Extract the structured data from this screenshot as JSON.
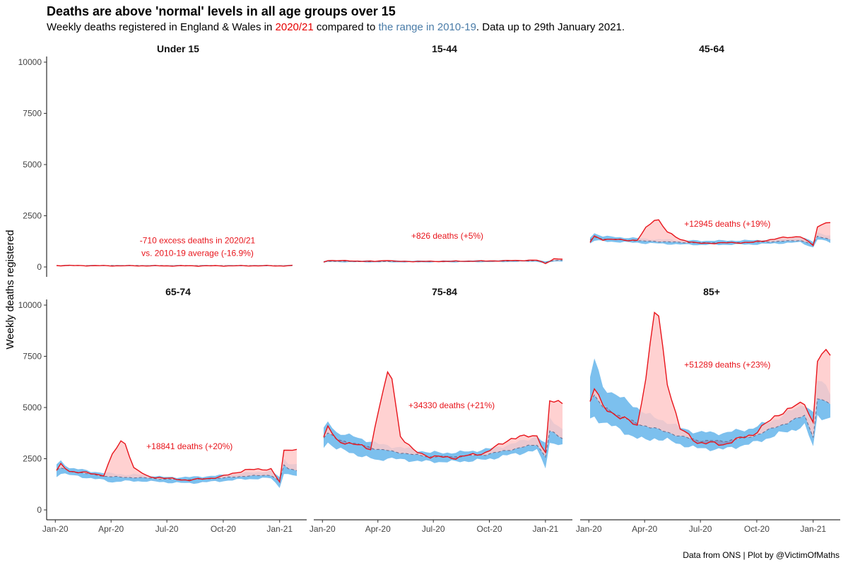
{
  "title": "Deaths are above 'normal' levels in all age groups over 15",
  "subtitle": {
    "part1": "Weekly deaths registered in England & Wales in ",
    "highlight1": "2020/21",
    "part2": " compared to ",
    "highlight2": "the range in 2010-19",
    "part3": ". Data up to 29th January 2021."
  },
  "caption": "Data from ONS | Plot by @VictimOfMaths",
  "colors": {
    "current_line": "#e8141b",
    "excess_fill": "#ffc9c9",
    "range_fill": "#7cc0ee",
    "avg_overlap": "#8a95c5",
    "avg_line": "#6b6b8a"
  },
  "chart_data": {
    "type": "area",
    "ylabel": "Weekly deaths registered",
    "xlabel": "",
    "ylim": [
      0,
      10000
    ],
    "yticks": [
      0,
      2500,
      5000,
      7500,
      10000
    ],
    "xlim": [
      "2020-01-03",
      "2021-01-29"
    ],
    "xticks": [
      {
        "date": "2020-01-01",
        "label": "Jan-20"
      },
      {
        "date": "2020-04-01",
        "label": "Apr-20"
      },
      {
        "date": "2020-07-01",
        "label": "Jul-20"
      },
      {
        "date": "2020-10-01",
        "label": "Oct-20"
      },
      {
        "date": "2021-01-01",
        "label": "Jan-21"
      }
    ],
    "series_labels": [
      "2020/21",
      "the range in 2010-19"
    ],
    "panels": [
      {
        "name": "Under 15",
        "annotation": [
          "-710 excess deaths in 2020/21",
          "vs. 2010-19 average (-16.9%)"
        ],
        "annotation_pos": {
          "date": "2020-08-20",
          "value": 1150
        },
        "keys": [
          {
            "week": 1,
            "current": 70,
            "avg": 70,
            "min": 60,
            "max": 90
          },
          {
            "week": 13,
            "current": 60,
            "avg": 68,
            "min": 55,
            "max": 85
          },
          {
            "week": 26,
            "current": 55,
            "avg": 65,
            "min": 50,
            "max": 80
          },
          {
            "week": 39,
            "current": 55,
            "avg": 65,
            "min": 50,
            "max": 80
          },
          {
            "week": 51,
            "current": 60,
            "avg": 65,
            "min": 50,
            "max": 85
          },
          {
            "week": 52,
            "current": 50,
            "avg": 60,
            "min": 40,
            "max": 80
          },
          {
            "week": 56,
            "current": 65,
            "avg": 70,
            "min": 55,
            "max": 90
          }
        ]
      },
      {
        "name": "15-44",
        "annotation": [
          "+826 deaths (+5%)"
        ],
        "annotation_pos": {
          "date": "2020-07-24",
          "value": 1380
        },
        "keys": [
          {
            "week": 1,
            "current": 240,
            "avg": 240,
            "min": 200,
            "max": 300
          },
          {
            "week": 2,
            "current": 320,
            "avg": 280,
            "min": 240,
            "max": 330
          },
          {
            "week": 13,
            "current": 270,
            "avg": 260,
            "min": 230,
            "max": 300
          },
          {
            "week": 16,
            "current": 330,
            "avg": 270,
            "min": 230,
            "max": 310
          },
          {
            "week": 18,
            "current": 270,
            "avg": 270,
            "min": 230,
            "max": 310
          },
          {
            "week": 26,
            "current": 270,
            "avg": 260,
            "min": 230,
            "max": 300
          },
          {
            "week": 39,
            "current": 290,
            "avg": 280,
            "min": 240,
            "max": 320
          },
          {
            "week": 51,
            "current": 330,
            "avg": 300,
            "min": 260,
            "max": 340
          },
          {
            "week": 53,
            "current": 170,
            "avg": 220,
            "min": 180,
            "max": 280
          },
          {
            "week": 55,
            "current": 400,
            "avg": 320,
            "min": 270,
            "max": 370
          },
          {
            "week": 57,
            "current": 380,
            "avg": 320,
            "min": 270,
            "max": 360
          }
        ]
      },
      {
        "name": "45-64",
        "annotation": [
          "+12945 deaths (+19%)"
        ],
        "annotation_pos": {
          "date": "2020-08-14",
          "value": 1960
        },
        "keys": [
          {
            "week": 1,
            "current": 1200,
            "avg": 1300,
            "min": 1150,
            "max": 1450
          },
          {
            "week": 2,
            "current": 1500,
            "avg": 1450,
            "min": 1300,
            "max": 1650
          },
          {
            "week": 4,
            "current": 1350,
            "avg": 1380,
            "min": 1250,
            "max": 1500
          },
          {
            "week": 12,
            "current": 1300,
            "avg": 1280,
            "min": 1180,
            "max": 1400
          },
          {
            "week": 14,
            "current": 1900,
            "avg": 1260,
            "min": 1150,
            "max": 1380
          },
          {
            "week": 16,
            "current": 2300,
            "avg": 1250,
            "min": 1150,
            "max": 1350
          },
          {
            "week": 17,
            "current": 2300,
            "avg": 1240,
            "min": 1140,
            "max": 1340
          },
          {
            "week": 19,
            "current": 1700,
            "avg": 1230,
            "min": 1120,
            "max": 1340
          },
          {
            "week": 22,
            "current": 1350,
            "avg": 1200,
            "min": 1100,
            "max": 1300
          },
          {
            "week": 26,
            "current": 1150,
            "avg": 1180,
            "min": 1080,
            "max": 1280
          },
          {
            "week": 39,
            "current": 1200,
            "avg": 1200,
            "min": 1100,
            "max": 1300
          },
          {
            "week": 45,
            "current": 1400,
            "avg": 1250,
            "min": 1150,
            "max": 1350
          },
          {
            "week": 50,
            "current": 1500,
            "avg": 1300,
            "min": 1200,
            "max": 1450
          },
          {
            "week": 53,
            "current": 1050,
            "avg": 1100,
            "min": 950,
            "max": 1250
          },
          {
            "week": 54,
            "current": 1950,
            "avg": 1500,
            "min": 1350,
            "max": 1700
          },
          {
            "week": 56,
            "current": 2200,
            "avg": 1400,
            "min": 1250,
            "max": 1550
          },
          {
            "week": 57,
            "current": 2150,
            "avg": 1350,
            "min": 1200,
            "max": 1500
          }
        ]
      },
      {
        "name": "65-74",
        "annotation": [
          "+18841 deaths (+20%)"
        ],
        "annotation_pos": {
          "date": "2020-08-07",
          "value": 2960
        },
        "keys": [
          {
            "week": 1,
            "current": 1900,
            "avg": 1950,
            "min": 1650,
            "max": 2200
          },
          {
            "week": 2,
            "current": 2200,
            "avg": 2050,
            "min": 1800,
            "max": 2400
          },
          {
            "week": 4,
            "current": 1900,
            "avg": 1900,
            "min": 1700,
            "max": 2050
          },
          {
            "week": 12,
            "current": 1700,
            "avg": 1650,
            "min": 1450,
            "max": 1800
          },
          {
            "week": 14,
            "current": 2700,
            "avg": 1620,
            "min": 1350,
            "max": 1780
          },
          {
            "week": 16,
            "current": 3350,
            "avg": 1600,
            "min": 1400,
            "max": 1750
          },
          {
            "week": 17,
            "current": 3250,
            "avg": 1590,
            "min": 1400,
            "max": 1720
          },
          {
            "week": 19,
            "current": 2050,
            "avg": 1580,
            "min": 1400,
            "max": 1720
          },
          {
            "week": 22,
            "current": 1650,
            "avg": 1560,
            "min": 1400,
            "max": 1700
          },
          {
            "week": 26,
            "current": 1550,
            "avg": 1500,
            "min": 1350,
            "max": 1600
          },
          {
            "week": 32,
            "current": 1450,
            "avg": 1480,
            "min": 1300,
            "max": 1600
          },
          {
            "week": 39,
            "current": 1600,
            "avg": 1550,
            "min": 1400,
            "max": 1680
          },
          {
            "week": 45,
            "current": 1950,
            "avg": 1650,
            "min": 1500,
            "max": 1800
          },
          {
            "week": 51,
            "current": 2000,
            "avg": 1700,
            "min": 1550,
            "max": 1900
          },
          {
            "week": 53,
            "current": 1350,
            "avg": 1400,
            "min": 1100,
            "max": 1600
          },
          {
            "week": 54,
            "current": 2850,
            "avg": 2200,
            "min": 1800,
            "max": 2500
          },
          {
            "week": 55,
            "current": 2950,
            "avg": 2000,
            "min": 1700,
            "max": 2300
          },
          {
            "week": 57,
            "current": 2950,
            "avg": 1950,
            "min": 1650,
            "max": 2200
          }
        ]
      },
      {
        "name": "75-84",
        "annotation": [
          "+34330 deaths (+21%)"
        ],
        "annotation_pos": {
          "date": "2020-07-31",
          "value": 4960
        },
        "keys": [
          {
            "week": 1,
            "current": 3500,
            "avg": 3550,
            "min": 3100,
            "max": 3900
          },
          {
            "week": 2,
            "current": 4050,
            "avg": 3750,
            "min": 3300,
            "max": 4300
          },
          {
            "week": 4,
            "current": 3400,
            "avg": 3450,
            "min": 3000,
            "max": 3800
          },
          {
            "week": 12,
            "current": 3000,
            "avg": 3050,
            "min": 2500,
            "max": 3350
          },
          {
            "week": 14,
            "current": 5000,
            "avg": 2950,
            "min": 2400,
            "max": 3200
          },
          {
            "week": 16,
            "current": 6650,
            "avg": 2900,
            "min": 2550,
            "max": 3150
          },
          {
            "week": 17,
            "current": 6450,
            "avg": 2850,
            "min": 2500,
            "max": 3100
          },
          {
            "week": 19,
            "current": 3600,
            "avg": 2800,
            "min": 2450,
            "max": 3050
          },
          {
            "week": 22,
            "current": 2900,
            "avg": 2700,
            "min": 2400,
            "max": 2950
          },
          {
            "week": 26,
            "current": 2600,
            "avg": 2600,
            "min": 2350,
            "max": 2800
          },
          {
            "week": 32,
            "current": 2550,
            "avg": 2600,
            "min": 2350,
            "max": 2800
          },
          {
            "week": 39,
            "current": 2800,
            "avg": 2700,
            "min": 2450,
            "max": 2950
          },
          {
            "week": 45,
            "current": 3500,
            "avg": 2950,
            "min": 2700,
            "max": 3200
          },
          {
            "week": 51,
            "current": 3650,
            "avg": 3200,
            "min": 2900,
            "max": 3600
          },
          {
            "week": 53,
            "current": 2750,
            "avg": 2600,
            "min": 2100,
            "max": 3200
          },
          {
            "week": 54,
            "current": 5250,
            "avg": 3850,
            "min": 3300,
            "max": 4500
          },
          {
            "week": 56,
            "current": 5300,
            "avg": 3600,
            "min": 3200,
            "max": 4100
          },
          {
            "week": 57,
            "current": 5250,
            "avg": 3500,
            "min": 3100,
            "max": 4000
          }
        ]
      },
      {
        "name": "85+",
        "annotation": [
          "+51289 deaths (+23%)"
        ],
        "annotation_pos": {
          "date": "2020-08-14",
          "value": 6940
        },
        "keys": [
          {
            "week": 1,
            "current": 5300,
            "avg": 5400,
            "min": 4400,
            "max": 6400
          },
          {
            "week": 2,
            "current": 6000,
            "avg": 5600,
            "min": 4500,
            "max": 7400
          },
          {
            "week": 4,
            "current": 5000,
            "avg": 5000,
            "min": 4300,
            "max": 6000
          },
          {
            "week": 12,
            "current": 4100,
            "avg": 4200,
            "min": 3500,
            "max": 5000
          },
          {
            "week": 14,
            "current": 6500,
            "avg": 4100,
            "min": 3400,
            "max": 4700
          },
          {
            "week": 16,
            "current": 9600,
            "avg": 4000,
            "min": 3500,
            "max": 4500
          },
          {
            "week": 17,
            "current": 9450,
            "avg": 3900,
            "min": 3450,
            "max": 4450
          },
          {
            "week": 19,
            "current": 6200,
            "avg": 3800,
            "min": 3400,
            "max": 4300
          },
          {
            "week": 22,
            "current": 3950,
            "avg": 3600,
            "min": 3200,
            "max": 4000
          },
          {
            "week": 26,
            "current": 3300,
            "avg": 3400,
            "min": 3000,
            "max": 3800
          },
          {
            "week": 32,
            "current": 3200,
            "avg": 3350,
            "min": 2950,
            "max": 3750
          },
          {
            "week": 39,
            "current": 3700,
            "avg": 3600,
            "min": 3250,
            "max": 4000
          },
          {
            "week": 45,
            "current": 4700,
            "avg": 4100,
            "min": 3700,
            "max": 4500
          },
          {
            "week": 51,
            "current": 5250,
            "avg": 4600,
            "min": 4100,
            "max": 5200
          },
          {
            "week": 53,
            "current": 4250,
            "avg": 3600,
            "min": 3100,
            "max": 4700
          },
          {
            "week": 54,
            "current": 7300,
            "avg": 5400,
            "min": 4600,
            "max": 6300
          },
          {
            "week": 56,
            "current": 7700,
            "avg": 5300,
            "min": 4500,
            "max": 6100
          },
          {
            "week": 57,
            "current": 7650,
            "avg": 5100,
            "min": 4400,
            "max": 5800
          }
        ]
      }
    ]
  }
}
